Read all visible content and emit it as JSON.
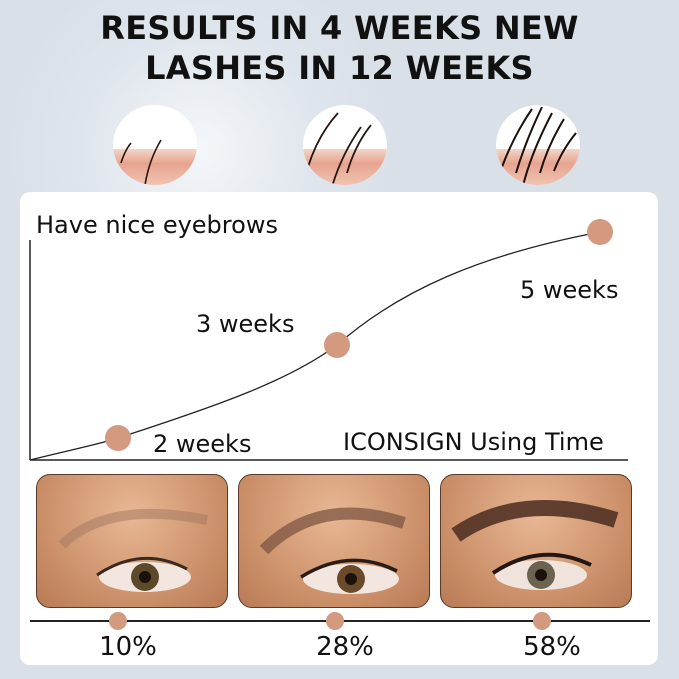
{
  "headline": {
    "line1": "RESULTS IN 4 WEEKS NEW",
    "line2": "LASHES IN 12 WEEKS"
  },
  "stages": [
    "hair-growth-stage-1",
    "hair-growth-stage-2",
    "hair-growth-stage-3"
  ],
  "chart": {
    "y_label": "Have nice eyebrows",
    "x_label": "ICONSIGN Using Time",
    "points": [
      {
        "label": "2 weeks"
      },
      {
        "label": "3 weeks"
      },
      {
        "label": "5 weeks"
      }
    ],
    "dot_color": "#d39a80"
  },
  "results": [
    {
      "percent": "10%"
    },
    {
      "percent": "28%"
    },
    {
      "percent": "58%"
    }
  ]
}
